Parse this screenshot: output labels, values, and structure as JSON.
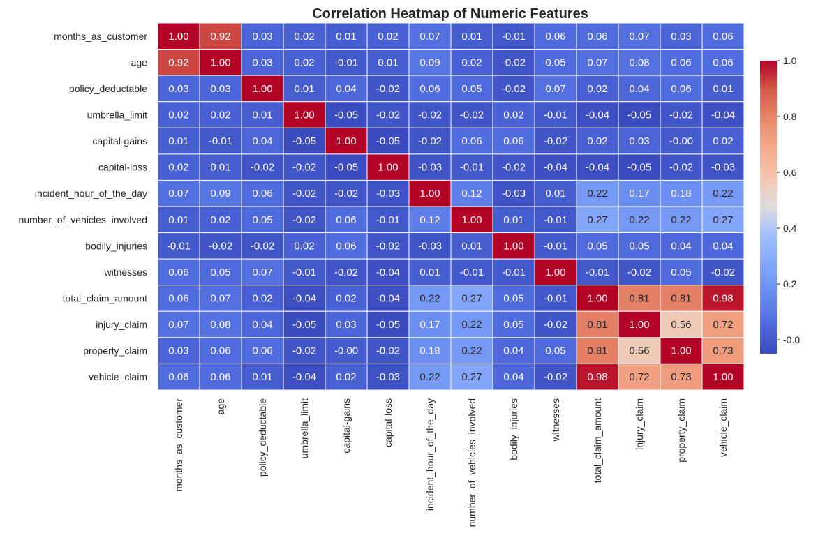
{
  "chart_data": {
    "type": "heatmap",
    "title": "Correlation Heatmap of Numeric Features",
    "variables": [
      "months_as_customer",
      "age",
      "policy_deductable",
      "umbrella_limit",
      "capital-gains",
      "capital-loss",
      "incident_hour_of_the_day",
      "number_of_vehicles_involved",
      "bodily_injuries",
      "witnesses",
      "total_claim_amount",
      "injury_claim",
      "property_claim",
      "vehicle_claim"
    ],
    "labels": [
      [
        "1.00",
        "0.92",
        "0.03",
        "0.02",
        "0.01",
        "0.02",
        "0.07",
        "0.01",
        "-0.01",
        "0.06",
        "0.06",
        "0.07",
        "0.03",
        "0.06"
      ],
      [
        "0.92",
        "1.00",
        "0.03",
        "0.02",
        "-0.01",
        "0.01",
        "0.09",
        "0.02",
        "-0.02",
        "0.05",
        "0.07",
        "0.08",
        "0.06",
        "0.06"
      ],
      [
        "0.03",
        "0.03",
        "1.00",
        "0.01",
        "0.04",
        "-0.02",
        "0.06",
        "0.05",
        "-0.02",
        "0.07",
        "0.02",
        "0.04",
        "0.06",
        "0.01"
      ],
      [
        "0.02",
        "0.02",
        "0.01",
        "1.00",
        "-0.05",
        "-0.02",
        "-0.02",
        "-0.02",
        "0.02",
        "-0.01",
        "-0.04",
        "-0.05",
        "-0.02",
        "-0.04"
      ],
      [
        "0.01",
        "-0.01",
        "0.04",
        "-0.05",
        "1.00",
        "-0.05",
        "-0.02",
        "0.06",
        "0.06",
        "-0.02",
        "0.02",
        "0.03",
        "-0.00",
        "0.02"
      ],
      [
        "0.02",
        "0.01",
        "-0.02",
        "-0.02",
        "-0.05",
        "1.00",
        "-0.03",
        "-0.01",
        "-0.02",
        "-0.04",
        "-0.04",
        "-0.05",
        "-0.02",
        "-0.03"
      ],
      [
        "0.07",
        "0.09",
        "0.06",
        "-0.02",
        "-0.02",
        "-0.03",
        "1.00",
        "0.12",
        "-0.03",
        "0.01",
        "0.22",
        "0.17",
        "0.18",
        "0.22"
      ],
      [
        "0.01",
        "0.02",
        "0.05",
        "-0.02",
        "0.06",
        "-0.01",
        "0.12",
        "1.00",
        "0.01",
        "-0.01",
        "0.27",
        "0.22",
        "0.22",
        "0.27"
      ],
      [
        "-0.01",
        "-0.02",
        "-0.02",
        "0.02",
        "0.06",
        "-0.02",
        "-0.03",
        "0.01",
        "1.00",
        "-0.01",
        "0.05",
        "0.05",
        "0.04",
        "0.04"
      ],
      [
        "0.06",
        "0.05",
        "0.07",
        "-0.01",
        "-0.02",
        "-0.04",
        "0.01",
        "-0.01",
        "-0.01",
        "1.00",
        "-0.01",
        "-0.02",
        "0.05",
        "-0.02"
      ],
      [
        "0.06",
        "0.07",
        "0.02",
        "-0.04",
        "0.02",
        "-0.04",
        "0.22",
        "0.27",
        "0.05",
        "-0.01",
        "1.00",
        "0.81",
        "0.81",
        "0.98"
      ],
      [
        "0.07",
        "0.08",
        "0.04",
        "-0.05",
        "0.03",
        "-0.05",
        "0.17",
        "0.22",
        "0.05",
        "-0.02",
        "0.81",
        "1.00",
        "0.56",
        "0.72"
      ],
      [
        "0.03",
        "0.06",
        "0.06",
        "-0.02",
        "-0.00",
        "-0.02",
        "0.18",
        "0.22",
        "0.04",
        "0.05",
        "0.81",
        "0.56",
        "1.00",
        "0.73"
      ],
      [
        "0.06",
        "0.06",
        "0.01",
        "-0.04",
        "0.02",
        "-0.03",
        "0.22",
        "0.27",
        "0.04",
        "-0.02",
        "0.98",
        "0.72",
        "0.73",
        "1.00"
      ]
    ],
    "colorbar": {
      "colormap": "coolwarm",
      "range": [
        -0.05,
        1.0
      ],
      "ticks": [
        "-0.0",
        "0.2",
        "0.4",
        "0.6",
        "0.8",
        "1.0"
      ],
      "tick_values": [
        0.0,
        0.2,
        0.4,
        0.6,
        0.8,
        1.0
      ]
    },
    "grid_line_color": "#ffffff"
  }
}
